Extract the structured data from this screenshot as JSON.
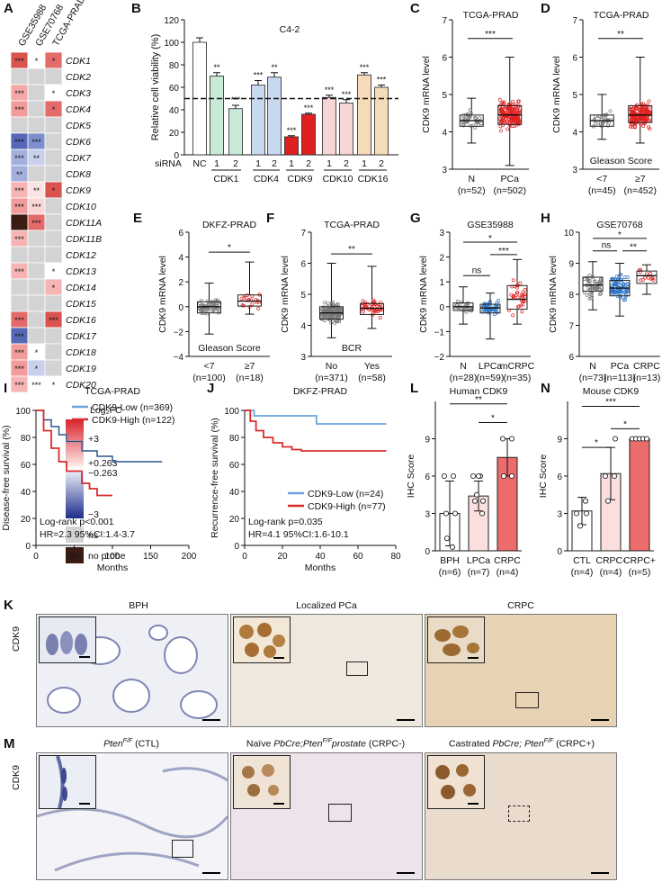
{
  "panels": {
    "A": {
      "letter": "A",
      "columns": [
        "GSE35988",
        "GSE70768",
        "TCGA-PRAD"
      ],
      "rows": [
        "CDK1",
        "CDK2",
        "CDK3",
        "CDK4",
        "CDK5",
        "CDK6",
        "CDK7",
        "CDK8",
        "CDK9",
        "CDK10",
        "CDK11A",
        "CDK11B",
        "CDK12",
        "CDK13",
        "CDK14",
        "CDK15",
        "CDK16",
        "CDK17",
        "CDK18",
        "CDK19",
        "CDK20"
      ],
      "cells": [
        [
          [
            "#d9534f",
            "***"
          ],
          [
            "#ffffff",
            "*"
          ],
          [
            "#e56b6b",
            "*"
          ]
        ],
        [
          [
            "#d3d3d3",
            ""
          ],
          [
            "#d3d3d3",
            ""
          ],
          [
            "#d3d3d3",
            ""
          ]
        ],
        [
          [
            "#f4a8a8",
            "***"
          ],
          [
            "#d3d3d3",
            ""
          ],
          [
            "#ffffff",
            "*"
          ]
        ],
        [
          [
            "#f19b9b",
            "***"
          ],
          [
            "#d3d3d3",
            ""
          ],
          [
            "#e56b6b",
            "*"
          ]
        ],
        [
          [
            "#d3d3d3",
            ""
          ],
          [
            "#d3d3d3",
            ""
          ],
          [
            "#d3d3d3",
            ""
          ]
        ],
        [
          [
            "#5468b5",
            "***"
          ],
          [
            "#7f8fcc",
            "***"
          ],
          [
            "#d3d3d3",
            ""
          ]
        ],
        [
          [
            "#a4b0dc",
            "***"
          ],
          [
            "#c9d0ec",
            "**"
          ],
          [
            "#d3d3d3",
            ""
          ]
        ],
        [
          [
            "#a4b0dc",
            "**"
          ],
          [
            "#d3d3d3",
            ""
          ],
          [
            "#d3d3d3",
            ""
          ]
        ],
        [
          [
            "#f6b4b4",
            "***"
          ],
          [
            "#fde4e4",
            "**"
          ],
          [
            "#d9534f",
            "*"
          ]
        ],
        [
          [
            "#f19b9b",
            "***"
          ],
          [
            "#fbd6d6",
            "***"
          ],
          [
            "#d3d3d3",
            ""
          ]
        ],
        [
          [
            "#3a1c12",
            ""
          ],
          [
            "#e56b6b",
            "***"
          ],
          [
            "#d3d3d3",
            ""
          ]
        ],
        [
          [
            "#f6b4b4",
            "***"
          ],
          [
            "#d3d3d3",
            ""
          ],
          [
            "#d3d3d3",
            ""
          ]
        ],
        [
          [
            "#d3d3d3",
            ""
          ],
          [
            "#d3d3d3",
            ""
          ],
          [
            "#d3d3d3",
            ""
          ]
        ],
        [
          [
            "#f6b4b4",
            "***"
          ],
          [
            "#d3d3d3",
            ""
          ],
          [
            "#ffffff",
            "*"
          ]
        ],
        [
          [
            "#d3d3d3",
            ""
          ],
          [
            "#d3d3d3",
            ""
          ],
          [
            "#f6b4b4",
            "*"
          ]
        ],
        [
          [
            "#d3d3d3",
            ""
          ],
          [
            "#d3d3d3",
            ""
          ],
          [
            "#d3d3d3",
            ""
          ]
        ],
        [
          [
            "#e56b6b",
            "***"
          ],
          [
            "#d3d3d3",
            ""
          ],
          [
            "#d9534f",
            "***"
          ]
        ],
        [
          [
            "#5468b5",
            "***"
          ],
          [
            "#d3d3d3",
            ""
          ],
          [
            "#d3d3d3",
            ""
          ]
        ],
        [
          [
            "#f19b9b",
            "***"
          ],
          [
            "#ffffff",
            "*"
          ],
          [
            "#d3d3d3",
            ""
          ]
        ],
        [
          [
            "#f19b9b",
            "***"
          ],
          [
            "#c9d0ec",
            "*"
          ],
          [
            "#d3d3d3",
            ""
          ]
        ],
        [
          [
            "#f6b4b4",
            "***"
          ],
          [
            "#ffffff",
            "***"
          ],
          [
            "#ffffff",
            "*"
          ]
        ]
      ],
      "legend": {
        "title": "Log₂FC",
        "ticks": [
          "+3",
          "+0.263",
          "−0.263",
          "−3"
        ],
        "ns": "ns",
        "no_probe": "no probe"
      }
    },
    "B": {
      "letter": "B",
      "title": "C4-2",
      "ylabel": "Relative cell viability (%)",
      "yticks": [
        "0",
        "20",
        "40",
        "60",
        "80",
        "100",
        "120"
      ],
      "sirna_label": "siRNA",
      "nc": "NC",
      "bars": [
        {
          "grp": "NC",
          "lab": "",
          "v": 100,
          "e": 4,
          "c": "#ffffff",
          "sig": ""
        },
        {
          "grp": "CDK1",
          "lab": "1",
          "v": 70,
          "e": 3,
          "c": "#c9ead6",
          "sig": "**"
        },
        {
          "grp": "CDK1",
          "lab": "2",
          "v": 41,
          "e": 3,
          "c": "#c9ead6",
          "sig": "***"
        },
        {
          "grp": "CDK4",
          "lab": "1",
          "v": 62,
          "e": 4,
          "c": "#c8d9ef",
          "sig": "***"
        },
        {
          "grp": "CDK4",
          "lab": "2",
          "v": 69,
          "e": 4,
          "c": "#c8d9ef",
          "sig": "**"
        },
        {
          "grp": "CDK9",
          "lab": "1",
          "v": 16,
          "e": 1,
          "c": "#e02020",
          "sig": "***"
        },
        {
          "grp": "CDK9",
          "lab": "2",
          "v": 36,
          "e": 1,
          "c": "#e02020",
          "sig": "***"
        },
        {
          "grp": "CDK10",
          "lab": "1",
          "v": 51,
          "e": 2,
          "c": "#f7d5d5",
          "sig": "***"
        },
        {
          "grp": "CDK10",
          "lab": "2",
          "v": 46,
          "e": 3,
          "c": "#f7d5d5",
          "sig": "***"
        },
        {
          "grp": "CDK16",
          "lab": "1",
          "v": 71,
          "e": 2,
          "c": "#f6dbb9",
          "sig": "***"
        },
        {
          "grp": "CDK16",
          "lab": "2",
          "v": 60,
          "e": 2,
          "c": "#f6dbb9",
          "sig": "***"
        }
      ],
      "groups": [
        "CDK1",
        "CDK4",
        "CDK9",
        "CDK10",
        "CDK16"
      ]
    },
    "C": {
      "letter": "C",
      "title": "TCGA-PRAD",
      "ylabel": "CDK9 mRNA level",
      "cats": [
        "N",
        "PCa"
      ],
      "ns": [
        "(n=52)",
        "(n=502)"
      ],
      "sig": "***",
      "yticks": [
        "3",
        "4",
        "5",
        "6",
        "7"
      ],
      "footer": ""
    },
    "D": {
      "letter": "D",
      "title": "TCGA-PRAD",
      "ylabel": "CDK9 mRNA level",
      "cats": [
        "<7",
        "≥7"
      ],
      "ns": [
        "(n=45)",
        "(n=452)"
      ],
      "sig": "**",
      "yticks": [
        "3",
        "4",
        "5",
        "6",
        "7"
      ],
      "footer": "Gleason Score"
    },
    "E": {
      "letter": "E",
      "title": "DKFZ-PRAD",
      "ylabel": "CDK9 mRNA level",
      "cats": [
        "<7",
        "≥7"
      ],
      "ns": [
        "(n=100)",
        "(n=18)"
      ],
      "sig": "*",
      "yticks": [
        "−4",
        "−2",
        "0",
        "2",
        "4",
        "6"
      ],
      "footer": "Gleason Score"
    },
    "F": {
      "letter": "F",
      "title": "TCGA-PRAD",
      "ylabel": "CDK9 mRNA level",
      "cats": [
        "No",
        "Yes"
      ],
      "ns": [
        "(n=371)",
        "(n=58)"
      ],
      "sig": "**",
      "yticks": [
        "3",
        "4",
        "5",
        "6",
        "7"
      ],
      "footer": "BCR"
    },
    "G": {
      "letter": "G",
      "title": "GSE35988",
      "ylabel": "CDK9 mRNA level",
      "cats": [
        "N",
        "LPCa",
        "mCRPC"
      ],
      "ns": [
        "(n=28)",
        "(n=59)",
        "(n=35)"
      ],
      "yticks": [
        "−2",
        "−1",
        "0",
        "1",
        "2",
        "3"
      ],
      "sigs": [
        "ns",
        "***",
        "*"
      ]
    },
    "H": {
      "letter": "H",
      "title": "GSE70768",
      "ylabel": "CDK9 mRNA level",
      "cats": [
        "N",
        "PCa",
        "CRPC"
      ],
      "ns": [
        "(n=73)",
        "(n=113)",
        "(n=13)"
      ],
      "yticks": [
        "6",
        "7",
        "8",
        "9",
        "10"
      ],
      "sigs": [
        "ns",
        "**",
        "*"
      ]
    },
    "I": {
      "letter": "I",
      "title": "TCGA-PRAD",
      "ylabel": "Disease-free survival (%)",
      "xlabel": "Months",
      "xticks": [
        "0",
        "50",
        "100",
        "150",
        "200"
      ],
      "yticks": [
        "0",
        "20",
        "40",
        "60",
        "80",
        "100"
      ],
      "legend": [
        "CDK9-Low (n=369)",
        "CDK9-High (n=122)"
      ],
      "stats": [
        "Log-rank  p<0.001",
        "HR=2.3  95%CI:1.4-3.7"
      ]
    },
    "J": {
      "letter": "J",
      "title": "DKFZ-PRAD",
      "ylabel": "Recurrence-free survival (%)",
      "xlabel": "Months",
      "xticks": [
        "0",
        "20",
        "40",
        "60",
        "80"
      ],
      "yticks": [
        "0",
        "20",
        "40",
        "60",
        "80",
        "100"
      ],
      "legend": [
        "CDK9-Low (n=24)",
        "CDK9-High (n=77)"
      ],
      "stats": [
        "Log-rank  p=0.035",
        "HR=4.1  95%CI:1.6-10.1"
      ]
    },
    "L": {
      "letter": "L",
      "title": "Human CDK9",
      "ylabel": "IHC Score",
      "cats": [
        "BPH",
        "LPCa",
        "CRPC"
      ],
      "ns": [
        "(n=6)",
        "(n=7)",
        "(n=4)"
      ],
      "yticks": [
        "0",
        "3",
        "6",
        "9"
      ],
      "sigs": [
        "*",
        "**"
      ]
    },
    "N": {
      "letter": "N",
      "title": "Mouse CDK9",
      "ylabel": "IHC Score",
      "cats": [
        "CTL",
        "CRPC-",
        "CRPC+"
      ],
      "ns": [
        "(n=4)",
        "(n=4)",
        "(n=5)"
      ],
      "yticks": [
        "0",
        "3",
        "6",
        "9"
      ],
      "sigs": [
        "*",
        "*",
        "***"
      ]
    },
    "K": {
      "letter": "K",
      "ylabel": "CDK9",
      "titles": [
        "BPH",
        "Localized PCa",
        "CRPC"
      ]
    },
    "M": {
      "letter": "M",
      "ylabel": "CDK9",
      "t1a": "Pten",
      "t1b": "F/F",
      "t1c": " (CTL)",
      "t2a": "Naïve ",
      "t2b": "PbCre;Pten",
      "t2c": "F/F",
      "t2d": "prostate",
      "t2e": " (CRPC-)",
      "t3a": "Castrated ",
      "t3b": "PbCre; Pten",
      "t3c": "F/F",
      "t3d": " (CRPC+)"
    }
  },
  "chart_data": [
    {
      "type": "heatmap",
      "panel": "A",
      "columns": [
        "GSE35988",
        "GSE70768",
        "TCGA-PRAD"
      ],
      "rows": [
        "CDK1",
        "CDK2",
        "CDK3",
        "CDK4",
        "CDK5",
        "CDK6",
        "CDK7",
        "CDK8",
        "CDK9",
        "CDK10",
        "CDK11A",
        "CDK11B",
        "CDK12",
        "CDK13",
        "CDK14",
        "CDK15",
        "CDK16",
        "CDK17",
        "CDK18",
        "CDK19",
        "CDK20"
      ]
    },
    {
      "type": "bar",
      "panel": "B",
      "title": "C4-2",
      "ylabel": "Relative cell viability (%)",
      "ylim": [
        0,
        120
      ],
      "categories": [
        "NC",
        "CDK1-1",
        "CDK1-2",
        "CDK4-1",
        "CDK4-2",
        "CDK9-1",
        "CDK9-2",
        "CDK10-1",
        "CDK10-2",
        "CDK16-1",
        "CDK16-2"
      ],
      "values": [
        100,
        70,
        41,
        62,
        69,
        16,
        36,
        51,
        46,
        71,
        60
      ],
      "reference_line": 50
    },
    {
      "type": "box",
      "panel": "C",
      "categories": [
        "N",
        "PCa"
      ],
      "medians": [
        4.3,
        4.45
      ],
      "ylim": [
        3,
        7
      ]
    },
    {
      "type": "box",
      "panel": "D",
      "categories": [
        "<7",
        "≥7"
      ],
      "medians": [
        4.3,
        4.45
      ],
      "ylim": [
        3,
        7
      ]
    },
    {
      "type": "box",
      "panel": "E",
      "categories": [
        "<7",
        "≥7"
      ],
      "medians": [
        0.0,
        0.45
      ],
      "ylim": [
        -4,
        6
      ]
    },
    {
      "type": "box",
      "panel": "F",
      "categories": [
        "No",
        "Yes"
      ],
      "medians": [
        4.4,
        4.55
      ],
      "ylim": [
        3,
        7
      ]
    },
    {
      "type": "box",
      "panel": "G",
      "categories": [
        "N",
        "LPCa",
        "mCRPC"
      ],
      "medians": [
        0.0,
        0.0,
        0.3
      ],
      "ylim": [
        -2,
        3
      ]
    },
    {
      "type": "box",
      "panel": "H",
      "categories": [
        "N",
        "PCa",
        "CRPC"
      ],
      "medians": [
        8.3,
        8.2,
        8.6
      ],
      "ylim": [
        6,
        10
      ]
    },
    {
      "type": "line",
      "panel": "I",
      "title": "TCGA-PRAD",
      "xlabel": "Months",
      "ylabel": "Disease-free survival (%)",
      "series": [
        {
          "name": "CDK9-Low (n=369)",
          "x": [
            0,
            10,
            20,
            30,
            40,
            60,
            80,
            100,
            120,
            165
          ],
          "y": [
            100,
            93,
            88,
            82,
            77,
            70,
            66,
            62,
            62,
            62
          ]
        },
        {
          "name": "CDK9-High (n=122)",
          "x": [
            0,
            10,
            20,
            30,
            40,
            60,
            70,
            80,
            100
          ],
          "y": [
            100,
            85,
            72,
            62,
            55,
            46,
            42,
            37,
            37
          ]
        }
      ],
      "xlim": [
        0,
        200
      ],
      "ylim": [
        0,
        100
      ]
    },
    {
      "type": "line",
      "panel": "J",
      "title": "DKFZ-PRAD",
      "xlabel": "Months",
      "ylabel": "Recurrence-free survival (%)",
      "series": [
        {
          "name": "CDK9-Low (n=24)",
          "x": [
            0,
            5,
            35,
            38,
            75
          ],
          "y": [
            100,
            96,
            96,
            90,
            90
          ]
        },
        {
          "name": "CDK9-High (n=77)",
          "x": [
            0,
            3,
            6,
            10,
            15,
            20,
            25,
            30,
            40,
            75
          ],
          "y": [
            100,
            92,
            85,
            80,
            76,
            73,
            71,
            70,
            70,
            70
          ]
        }
      ],
      "xlim": [
        0,
        80
      ],
      "ylim": [
        0,
        100
      ]
    },
    {
      "type": "bar",
      "panel": "L",
      "title": "Human CDK9",
      "ylabel": "IHC Score",
      "categories": [
        "BPH",
        "LPCa",
        "CRPC"
      ],
      "values": [
        3.0,
        4.4,
        7.5
      ],
      "errors": [
        2.6,
        1.2,
        1.5
      ],
      "ylim": [
        0,
        12
      ]
    },
    {
      "type": "bar",
      "panel": "N",
      "title": "Mouse CDK9",
      "ylabel": "IHC Score",
      "categories": [
        "CTL",
        "CRPC-",
        "CRPC+"
      ],
      "values": [
        3.2,
        6.2,
        9.0
      ],
      "errors": [
        1.1,
        2.1,
        0.1
      ],
      "ylim": [
        0,
        12
      ]
    }
  ]
}
